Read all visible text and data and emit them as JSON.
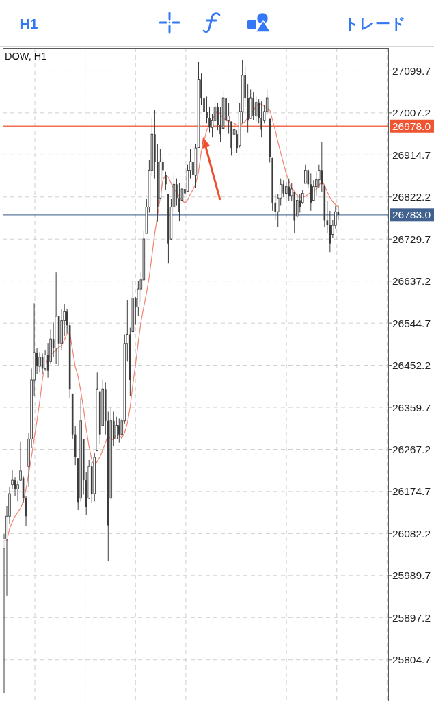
{
  "chart_data": {
    "type": "candlestick",
    "title": "DOW, H1",
    "annotations": [
      "H1",
      "トレード"
    ],
    "categories": [
      null,
      null,
      null,
      null,
      null,
      null,
      null,
      null,
      null,
      null,
      null,
      null,
      null,
      null,
      null,
      null,
      null,
      null,
      null,
      null,
      null,
      null,
      null,
      null,
      null,
      null,
      null,
      null,
      null,
      null,
      null,
      null,
      null,
      null,
      null,
      null,
      null,
      null,
      null,
      null,
      null,
      null,
      null,
      null,
      null,
      null,
      null,
      null,
      null,
      null,
      null,
      null,
      null,
      null,
      null,
      null,
      null,
      null,
      null,
      null,
      null,
      null,
      null,
      null,
      null,
      null,
      null,
      null,
      null,
      null,
      null,
      null,
      null,
      null,
      null,
      null,
      null,
      null,
      null,
      null,
      null,
      null,
      null,
      null,
      null,
      null,
      null,
      null,
      null,
      null,
      null,
      null,
      null,
      null,
      null,
      null,
      null,
      null,
      null,
      null,
      null,
      null,
      null,
      null,
      null,
      null,
      null,
      null,
      null,
      null,
      null,
      null,
      null,
      null,
      null,
      null,
      null,
      null,
      null,
      null,
      null,
      null,
      null
    ],
    "color": "#3c3c3c",
    "ohlc": [
      [
        26050,
        26081,
        25732,
        26070
      ],
      [
        26070,
        26143,
        25946,
        26120
      ],
      [
        26120,
        26184,
        26104,
        26170
      ],
      [
        26190,
        26221,
        26179,
        26200
      ],
      [
        26200,
        26206,
        26164,
        26180
      ],
      [
        26180,
        26199,
        26153,
        26190
      ],
      [
        26200,
        26285,
        26199,
        26220
      ],
      [
        26205,
        26209,
        26149,
        26160
      ],
      [
        26160,
        26164,
        26098,
        26120
      ],
      [
        26230,
        26304,
        26184,
        26290
      ],
      [
        26290,
        26445,
        26270,
        26420
      ],
      [
        26420,
        26588,
        26384,
        26480
      ],
      [
        26480,
        26490,
        26433,
        26450
      ],
      [
        26450,
        26481,
        26436,
        26470
      ],
      [
        26470,
        26478,
        26433,
        26445
      ],
      [
        26445,
        26486,
        26440,
        26475
      ],
      [
        26475,
        26501,
        26425,
        26440
      ],
      [
        26460,
        26531,
        26455,
        26510
      ],
      [
        26510,
        26546,
        26470,
        26490
      ],
      [
        26490,
        26656,
        26455,
        26560
      ],
      [
        26560,
        26561,
        26451,
        26500
      ],
      [
        26500,
        26576,
        26486,
        26550
      ],
      [
        26550,
        26587,
        26516,
        26570
      ],
      [
        26570,
        26576,
        26523,
        26540
      ],
      [
        26540,
        26546,
        26380,
        26400
      ],
      [
        26390,
        26390,
        26289,
        26300
      ],
      [
        26300,
        26319,
        26233,
        26250
      ],
      [
        26248,
        26248,
        26134,
        26150
      ],
      [
        26160,
        26380,
        26153,
        26330
      ],
      [
        26289,
        26289,
        26168,
        26200
      ],
      [
        26200,
        26218,
        26123,
        26140
      ],
      [
        26160,
        26244,
        26158,
        26230
      ],
      [
        26230,
        26239,
        26149,
        26170
      ],
      [
        26170,
        26259,
        26153,
        26250
      ],
      [
        26264,
        26436,
        26264,
        26400
      ],
      [
        26395,
        26395,
        26279,
        26300
      ],
      [
        26320,
        26421,
        26319,
        26400
      ],
      [
        26400,
        26415,
        26300,
        26330
      ],
      [
        26330,
        26350,
        26022,
        26100
      ],
      [
        26160,
        26360,
        26158,
        26330
      ],
      [
        26330,
        26350,
        26274,
        26290
      ],
      [
        26290,
        26339,
        26289,
        26320
      ],
      [
        26320,
        26335,
        26282,
        26300
      ],
      [
        26300,
        26335,
        26289,
        26330
      ],
      [
        26330,
        26520,
        26324,
        26500
      ],
      [
        26500,
        26596,
        26460,
        26520
      ],
      [
        26520,
        26535,
        26384,
        26420
      ],
      [
        26526,
        26637,
        26526,
        26600
      ],
      [
        26600,
        26602,
        26541,
        26580
      ],
      [
        26580,
        26637,
        26561,
        26620
      ],
      [
        26620,
        26656,
        26591,
        26640
      ],
      [
        26640,
        26747,
        26637,
        26730
      ],
      [
        26742,
        26818,
        26742,
        26800
      ],
      [
        26800,
        26904,
        26788,
        26880
      ],
      [
        26880,
        26996,
        26868,
        26960
      ],
      [
        26960,
        27014,
        26863,
        26900
      ],
      [
        26900,
        26939,
        26768,
        26800
      ],
      [
        26820,
        26928,
        26818,
        26900
      ],
      [
        26900,
        26908,
        26863,
        26880
      ],
      [
        26870,
        26878,
        26837,
        26850
      ],
      [
        26828,
        26828,
        26677,
        26720
      ],
      [
        26730,
        26818,
        26727,
        26800
      ],
      [
        26800,
        26874,
        26788,
        26850
      ],
      [
        26850,
        26863,
        26803,
        26820
      ],
      [
        26820,
        26852,
        26769,
        26790
      ],
      [
        26815,
        26852,
        26813,
        26840
      ],
      [
        26840,
        26856,
        26818,
        26830
      ],
      [
        26835,
        26893,
        26833,
        26880
      ],
      [
        26880,
        26928,
        26863,
        26900
      ],
      [
        26900,
        26934,
        26852,
        26870
      ],
      [
        26870,
        26939,
        26843,
        26930
      ],
      [
        26931,
        27120,
        26931,
        27080
      ],
      [
        27080,
        27094,
        27025,
        27040
      ],
      [
        27040,
        27074,
        26999,
        27010
      ],
      [
        27010,
        27044,
        26984,
        26995
      ],
      [
        26995,
        27019,
        26964,
        26975
      ],
      [
        26975,
        27004,
        26954,
        26990
      ],
      [
        26990,
        27034,
        26964,
        27020
      ],
      [
        27020,
        27029,
        26969,
        26980
      ],
      [
        26980,
        27019,
        26943,
        26960
      ],
      [
        26973,
        27056,
        26973,
        27040
      ],
      [
        27040,
        27040,
        26969,
        26990
      ],
      [
        26990,
        27029,
        26961,
        27000
      ],
      [
        26988,
        26988,
        26913,
        26930
      ],
      [
        26960,
        26984,
        26954,
        26970
      ],
      [
        26960,
        26969,
        26919,
        26930
      ],
      [
        26935,
        27029,
        26931,
        27010
      ],
      [
        27010,
        27124,
        26984,
        27090
      ],
      [
        27090,
        27109,
        27019,
        27040
      ],
      [
        27040,
        27070,
        26964,
        26990
      ],
      [
        26995,
        27059,
        26994,
        27040
      ],
      [
        27040,
        27052,
        26991,
        27000
      ],
      [
        27000,
        27044,
        26988,
        27030
      ],
      [
        27030,
        27037,
        26984,
        26995
      ],
      [
        26995,
        27034,
        26954,
        26970
      ],
      [
        26990,
        27025,
        26984,
        27010
      ],
      [
        27010,
        27059,
        27004,
        27040
      ],
      [
        26994,
        26994,
        26898,
        26910
      ],
      [
        26908,
        26908,
        26792,
        26810
      ],
      [
        26810,
        26828,
        26772,
        26790
      ],
      [
        26790,
        26828,
        26757,
        26820
      ],
      [
        26820,
        26863,
        26803,
        26850
      ],
      [
        26850,
        26859,
        26822,
        26830
      ],
      [
        26830,
        26856,
        26818,
        26845
      ],
      [
        26845,
        26863,
        26813,
        26825
      ],
      [
        26825,
        26852,
        26813,
        26840
      ],
      [
        26833,
        26833,
        26742,
        26770
      ],
      [
        26780,
        26828,
        26777,
        26815
      ],
      [
        26815,
        26828,
        26788,
        26800
      ],
      [
        26810,
        26837,
        26807,
        26830
      ],
      [
        26852,
        26893,
        26852,
        26880
      ],
      [
        26880,
        26883,
        26843,
        26850
      ],
      [
        26850,
        26874,
        26792,
        26810
      ],
      [
        26815,
        26859,
        26813,
        26845
      ],
      [
        26845,
        26878,
        26825,
        26860
      ],
      [
        26860,
        26893,
        26843,
        26880
      ],
      [
        26880,
        26943,
        26833,
        26850
      ],
      [
        26848,
        26848,
        26757,
        26770
      ],
      [
        26770,
        26813,
        26742,
        26760
      ],
      [
        26760,
        26792,
        26701,
        26720
      ],
      [
        26740,
        26772,
        26732,
        26760
      ],
      [
        26760,
        26803,
        26753,
        26790
      ],
      [
        26790,
        26803,
        26772,
        26783
      ]
    ],
    "series": [
      {
        "type": "line",
        "color": "#f3826e",
        "values": [
          26066,
          26066,
          26093,
          26108,
          26120,
          26129,
          26138,
          26153,
          26180,
          26214,
          26251,
          26292,
          26330,
          26372,
          26422,
          26452,
          26466,
          26476,
          26481,
          26486,
          26492,
          26496,
          26508,
          26522,
          26523,
          26486,
          26448,
          26428,
          26395,
          26357,
          26312,
          26274,
          26244,
          26229,
          26241,
          26251,
          26266,
          26282,
          26300,
          26288,
          26289,
          26301,
          26298,
          26292,
          26304,
          26325,
          26360,
          26410,
          26455,
          26504,
          26549,
          26581,
          26612,
          26647,
          26694,
          26742,
          26781,
          26821,
          26860,
          26871,
          26866,
          26852,
          26840,
          26833,
          26822,
          26815,
          26809,
          26816,
          26828,
          26839,
          26852,
          26878,
          26923,
          26946,
          26969,
          26981,
          26991,
          27004,
          27014,
          27004,
          26996,
          26991,
          26988,
          26987,
          26984,
          26981,
          26979,
          26984,
          26988,
          26997,
          27005,
          27012,
          27022,
          27028,
          27026,
          27022,
          27017,
          27014,
          26991,
          26969,
          26943,
          26919,
          26896,
          26874,
          26857,
          26843,
          26834,
          26825,
          26822,
          26821,
          26824,
          26828,
          26833,
          26836,
          26839,
          26848,
          26857,
          26848,
          26833,
          26821,
          26812,
          26806,
          26800
        ]
      }
    ],
    "ylim": [
      25714,
      27150
    ],
    "yticks": [
      25804.7,
      25897.2,
      25989.7,
      26082.2,
      26174.7,
      26267.2,
      26359.7,
      26452.2,
      26544.7,
      26637.2,
      26729.7,
      26822.2,
      26914.7,
      27007.2,
      27099.7
    ],
    "ref_lines": [
      {
        "axis": "y",
        "value": 26978.0,
        "label": "26978.0",
        "color": "#ee5533"
      },
      {
        "axis": "y",
        "value": 26783.0,
        "label": "26783.0",
        "color": "#41628f"
      }
    ],
    "grid": true,
    "tick_labels": "y"
  }
}
